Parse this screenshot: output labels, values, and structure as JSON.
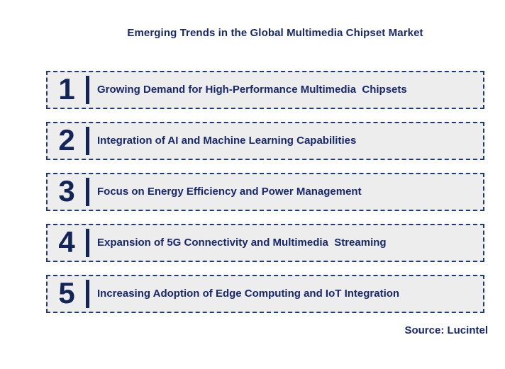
{
  "header": {
    "title": "Emerging Trends in the Global Multimedia Chipset Market"
  },
  "trends": [
    {
      "number": "1",
      "label": "Growing Demand for High-Performance Multimedia  Chipsets"
    },
    {
      "number": "2",
      "label": "Integration of AI and Machine Learning Capabilities"
    },
    {
      "number": "3",
      "label": "Focus on Energy Efficiency and Power Management"
    },
    {
      "number": "4",
      "label": "Expansion of 5G Connectivity and Multimedia  Streaming"
    },
    {
      "number": "5",
      "label": "Increasing Adoption of Edge Computing and IoT Integration"
    }
  ],
  "footer": {
    "source": "Source: Lucintel"
  },
  "colors": {
    "navy": "#16286E",
    "num_navy": "#132558",
    "border_navy": "#1F3A70",
    "box_bg": "#EDEDED",
    "page_bg": "#FFFFFF"
  }
}
